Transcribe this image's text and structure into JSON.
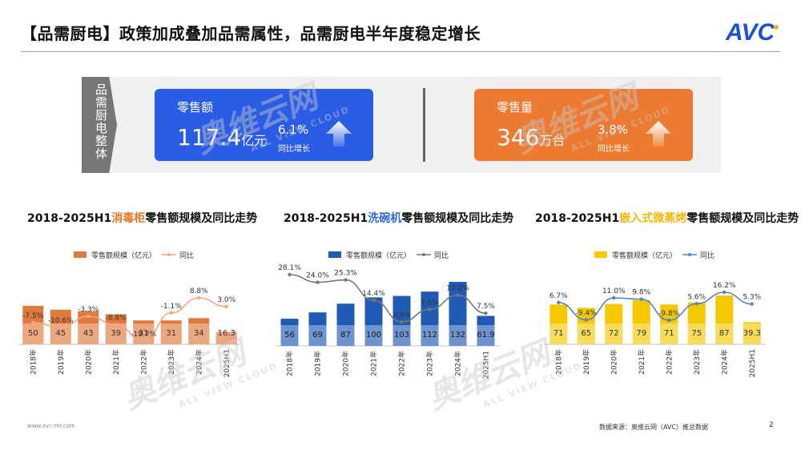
{
  "header": {
    "title": "【品需厨电】政策加成叠加品需属性，品需厨电半年度稳定增长",
    "logo_text": "AVC"
  },
  "summary": {
    "side_label": "品需厨电整体",
    "cards": [
      {
        "label": "零售额",
        "value": "117.4",
        "unit": "亿元",
        "pct": "6.1%",
        "yoy": "同比增长",
        "color": "#2b5ce6"
      },
      {
        "label": "零售量",
        "value": "346",
        "unit": "万台",
        "pct": "3.8%",
        "yoy": "同比增长",
        "color": "#ec7a30"
      }
    ]
  },
  "chart_titles": [
    {
      "prefix": "2018-2025H1",
      "highlight": "消毒柜",
      "suffix": "零售额规模及同比走势",
      "hl_color": "#e8731e"
    },
    {
      "prefix": "2018-2025H1",
      "highlight": "洗碗机",
      "suffix": "零售额规模及同比走势",
      "hl_color": "#2b6ad8"
    },
    {
      "prefix": "2018-2025H1",
      "highlight": "嵌入式微蒸烤",
      "suffix": "零售额规模及同比走势",
      "hl_color": "#f2b705"
    }
  ],
  "chart_data": [
    {
      "type": "bar",
      "categories": [
        "2018年",
        "2019年",
        "2020年",
        "2021年",
        "2022年",
        "2023年",
        "2024年",
        "2025H1"
      ],
      "series": [
        {
          "name": "零售额规模（亿元）",
          "values": [
            50,
            45,
            43,
            39,
            31,
            31,
            34,
            16.3
          ],
          "labels": [
            "50",
            "45",
            "43",
            "39",
            "31",
            "31",
            "34",
            "16.3"
          ],
          "color": "#e07a3c"
        },
        {
          "name": "同比",
          "type": "line",
          "values": [
            -7.5,
            -10.6,
            -3.3,
            -8.8,
            -19.7,
            -1.1,
            8.8,
            3.0
          ],
          "labels": [
            "-7.5%",
            "-10.6%",
            "-3.3%",
            "-8.8%",
            "-19.7%",
            "-1.1%",
            "8.8%",
            "3.0%"
          ],
          "color": "#f2a77e"
        }
      ],
      "legend": "top"
    },
    {
      "type": "bar",
      "categories": [
        "2018年",
        "2019年",
        "2020年",
        "2021年",
        "2022年",
        "2023年",
        "2024年",
        "2025H1"
      ],
      "series": [
        {
          "name": "零售额规模（亿元）",
          "values": [
            56,
            69,
            87,
            100,
            103,
            112,
            132,
            61.9
          ],
          "labels": [
            "56",
            "69",
            "87",
            "100",
            "103",
            "112",
            "132",
            "61.9"
          ],
          "color": "#1f5bb5"
        },
        {
          "name": "同比",
          "type": "line",
          "values": [
            28.1,
            24.0,
            25.3,
            14.4,
            2.9,
            9.6,
            17.2,
            7.5
          ],
          "labels": [
            "28.1%",
            "24.0%",
            "25.3%",
            "14.4%",
            "2.9%",
            "9.6%",
            "17.2%",
            "7.5%"
          ],
          "color": "#777777"
        }
      ],
      "legend": "top"
    },
    {
      "type": "bar",
      "categories": [
        "2018年",
        "2019年",
        "2020年",
        "2021年",
        "2022年",
        "2023年",
        "2024年",
        "2025H1"
      ],
      "series": [
        {
          "name": "零售额规模（亿元）",
          "values": [
            71,
            65,
            72,
            79,
            71,
            75,
            87,
            39.3
          ],
          "labels": [
            "71",
            "65",
            "72",
            "79",
            "71",
            "75",
            "87",
            "39.3"
          ],
          "color": "#f5c800"
        },
        {
          "name": "同比",
          "type": "line",
          "values": [
            6.7,
            -9.4,
            11.0,
            9.8,
            -9.8,
            5.6,
            16.2,
            5.3
          ],
          "labels": [
            "6.7%",
            "-9.4%",
            "11.0%",
            "9.8%",
            "-9.8%",
            "5.6%",
            "16.2%",
            "5.3%"
          ],
          "color": "#4f86c6"
        }
      ],
      "legend": "top"
    }
  ],
  "watermark": {
    "main": "奥维云网",
    "sub": "ALL VIEW CLOUD"
  },
  "footer": {
    "website": "www.avc-mr.com",
    "source": "数据来源：奥维云网（AVC）推总数据",
    "page": "2"
  }
}
